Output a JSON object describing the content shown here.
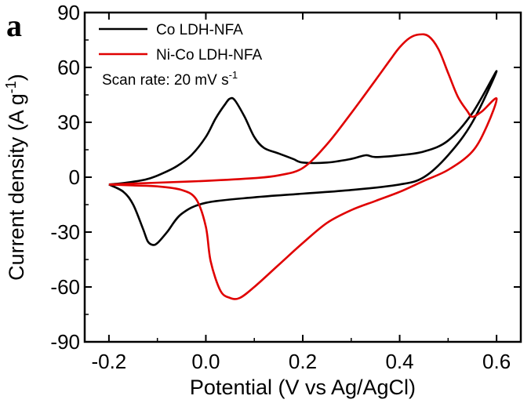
{
  "chart_data": {
    "type": "line",
    "panel_label": "a",
    "xlabel": "Potential (V vs Ag/AgCl)",
    "ylabel_main": "Current density (A g",
    "ylabel_sup": "-1",
    "ylabel_close": ")",
    "xlim": [
      -0.25,
      0.65
    ],
    "ylim": [
      -90,
      90
    ],
    "x_ticks": [
      -0.2,
      0.0,
      0.2,
      0.4,
      0.6
    ],
    "x_tick_labels": [
      "-0.2",
      "0.0",
      "0.2",
      "0.4",
      "0.6"
    ],
    "y_ticks": [
      -90,
      -60,
      -30,
      0,
      30,
      60,
      90
    ],
    "y_tick_labels": [
      "-90",
      "-60",
      "-30",
      "0",
      "30",
      "60",
      "90"
    ],
    "annotation_main": "Scan rate: 20 mV s",
    "annotation_sup": "-1",
    "legend_position": "top-left",
    "grid": false,
    "series": [
      {
        "name": "Co LDH-NFA",
        "color": "#000000",
        "x": [
          -0.2,
          -0.18,
          -0.15,
          -0.12,
          -0.09,
          -0.06,
          -0.03,
          0.0,
          0.02,
          0.04,
          0.05,
          0.06,
          0.08,
          0.1,
          0.12,
          0.15,
          0.18,
          0.2,
          0.25,
          0.3,
          0.33,
          0.35,
          0.4,
          0.45,
          0.5,
          0.55,
          0.6,
          0.55,
          0.5,
          0.45,
          0.4,
          0.3,
          0.2,
          0.1,
          0.0,
          -0.05,
          -0.08,
          -0.1,
          -0.11,
          -0.12,
          -0.13,
          -0.15,
          -0.17,
          -0.2
        ],
        "y": [
          -4,
          -3.5,
          -2.5,
          -1,
          2,
          6,
          12,
          22,
          32,
          40,
          43,
          42,
          33,
          22,
          16,
          13,
          10,
          8,
          8,
          10,
          12,
          11,
          12,
          14,
          20,
          35,
          58,
          30,
          12,
          0,
          -4,
          -7,
          -9,
          -11,
          -14,
          -20,
          -30,
          -36,
          -37,
          -35,
          -28,
          -15,
          -8,
          -4
        ]
      },
      {
        "name": "Ni-Co LDH-NFA",
        "color": "#e00000",
        "x": [
          -0.2,
          -0.15,
          -0.1,
          0.0,
          0.1,
          0.15,
          0.2,
          0.25,
          0.3,
          0.35,
          0.38,
          0.4,
          0.42,
          0.44,
          0.46,
          0.48,
          0.5,
          0.52,
          0.54,
          0.55,
          0.57,
          0.6,
          0.58,
          0.55,
          0.5,
          0.45,
          0.4,
          0.35,
          0.3,
          0.25,
          0.2,
          0.15,
          0.1,
          0.07,
          0.05,
          0.03,
          0.01,
          0.0,
          -0.02,
          -0.05,
          -0.1,
          -0.15,
          -0.2
        ],
        "y": [
          -4,
          -3.5,
          -3,
          -2,
          -0.5,
          1,
          5,
          18,
          35,
          53,
          64,
          71,
          76,
          78,
          77,
          70,
          57,
          44,
          36,
          33,
          36,
          43,
          28,
          14,
          4,
          -2,
          -8,
          -13,
          -18,
          -25,
          -36,
          -48,
          -60,
          -66,
          -66,
          -62,
          -46,
          -27,
          -12,
          -7,
          -5,
          -4.5,
          -4
        ]
      }
    ]
  }
}
